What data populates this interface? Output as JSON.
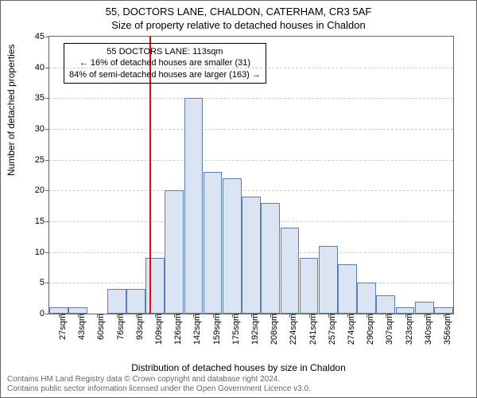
{
  "title_main": "55, DOCTORS LANE, CHALDON, CATERHAM, CR3 5AF",
  "title_sub": "Size of property relative to detached houses in Chaldon",
  "y_axis_label": "Number of detached properties",
  "x_axis_label": "Distribution of detached houses by size in Chaldon",
  "chart": {
    "type": "bar",
    "ylim": [
      0,
      45
    ],
    "ytick_step": 5,
    "yticks": [
      0,
      5,
      10,
      15,
      20,
      25,
      30,
      35,
      40,
      45
    ],
    "xticks": [
      "27sqm",
      "43sqm",
      "60sqm",
      "76sqm",
      "93sqm",
      "109sqm",
      "126sqm",
      "142sqm",
      "159sqm",
      "175sqm",
      "192sqm",
      "208sqm",
      "224sqm",
      "241sqm",
      "257sqm",
      "274sqm",
      "290sqm",
      "307sqm",
      "323sqm",
      "340sqm",
      "356sqm"
    ],
    "values": [
      1,
      1,
      0,
      4,
      4,
      9,
      20,
      35,
      23,
      22,
      19,
      18,
      14,
      9,
      11,
      8,
      5,
      3,
      1,
      2,
      1
    ],
    "bar_fill": "#dbe4f3",
    "bar_border": "#5b7fb5",
    "grid_color": "#cccccc",
    "axis_color": "#666666",
    "background_color": "#ffffff",
    "marker_value": 113,
    "marker_color": "#ff0000",
    "annotation": {
      "line1": "55 DOCTORS LANE: 113sqm",
      "line2": "← 16% of detached houses are smaller (31)",
      "line3": "84% of semi-detached houses are larger (163) →",
      "border_color": "#000000"
    }
  },
  "footer_line1": "Contains HM Land Registry data © Crown copyright and database right 2024.",
  "footer_line2": "Contains public sector information licensed under the Open Government Licence v3.0."
}
